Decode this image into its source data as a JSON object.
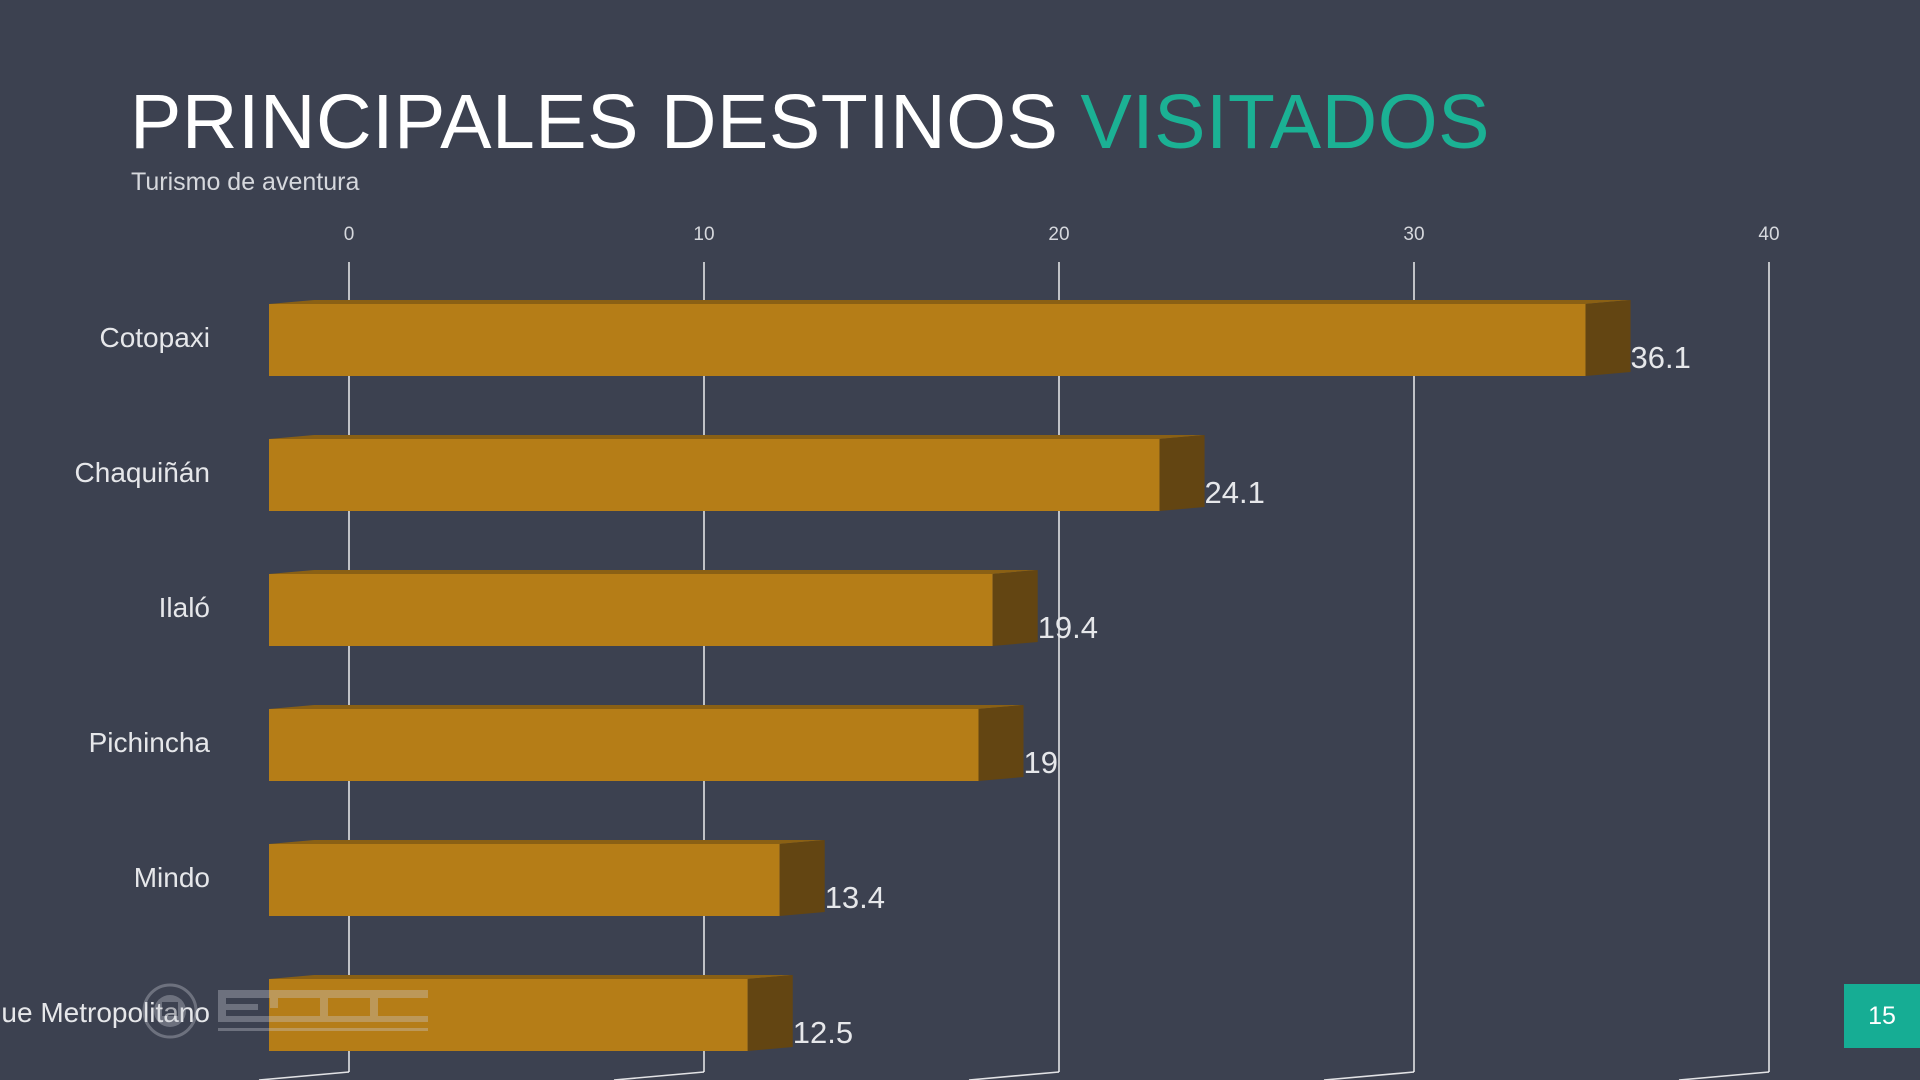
{
  "slide": {
    "title_main": "PRINCIPALES DESTINOS",
    "title_accent": "VISITADOS",
    "subtitle": "Turismo de aventura",
    "page_number": "15",
    "accent_color": "#1bb194",
    "background_color": "#3c4150",
    "logo_icon": "espe-logo-icon"
  },
  "chart_data": {
    "type": "bar",
    "orientation": "horizontal",
    "style": "3d",
    "title": "",
    "xlabel": "",
    "ylabel": "",
    "categories": [
      "Cotopaxi",
      "Chaquiñán",
      "Ilaló",
      "Pichincha",
      "Mindo",
      "Parque Metropolitano"
    ],
    "values": [
      36.1,
      24.1,
      19.4,
      19,
      13.4,
      12.5
    ],
    "data_labels": [
      "36.1",
      "24.1",
      "19.4",
      "19",
      "13.4",
      "12.5"
    ],
    "xlim": [
      0,
      40
    ],
    "x_ticks": [
      0,
      10,
      20,
      30,
      40
    ],
    "grid": true,
    "legend": "none",
    "bar_color": "#b57d17",
    "bar_side_color": "#634512",
    "gridline_color": "#ffffff"
  }
}
